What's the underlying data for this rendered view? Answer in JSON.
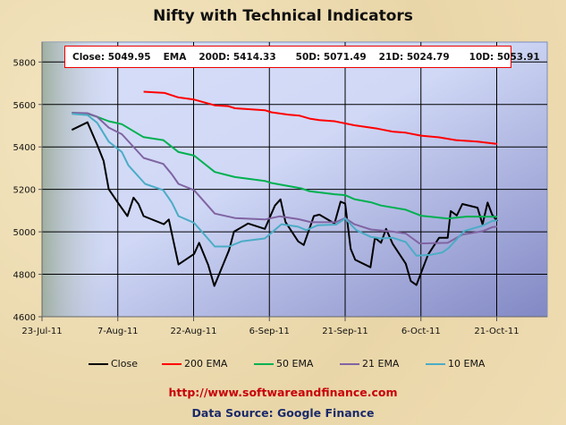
{
  "chart_data": {
    "type": "line",
    "title": "Nifty with Technical Indicators",
    "x_unit": "days since 23-Jul-11",
    "xlim": [
      0,
      100
    ],
    "ylim": [
      4600,
      5894
    ],
    "x_ticks": [
      {
        "day": 0,
        "label": "23-Jul-11"
      },
      {
        "day": 15,
        "label": "7-Aug-11"
      },
      {
        "day": 30,
        "label": "22-Aug-11"
      },
      {
        "day": 45,
        "label": "6-Sep-11"
      },
      {
        "day": 60,
        "label": "21-Sep-11"
      },
      {
        "day": 75,
        "label": "6-Oct-11"
      },
      {
        "day": 90,
        "label": "21-Oct-11"
      }
    ],
    "y_ticks": [
      4600,
      4800,
      5000,
      5200,
      5400,
      5600,
      5800
    ],
    "grid": true,
    "legend_position": "bottom",
    "info_box": {
      "close": "Close: 5049.95",
      "ema": "EMA",
      "d200": "200D: 5414.33",
      "d50": "50D: 5071.49",
      "d21": "21D: 5024.79",
      "d10": "10D: 5053.91"
    },
    "series": [
      {
        "name": "Close",
        "color": "#000000",
        "points": [
          [
            5.9,
            5480
          ],
          [
            9,
            5516
          ],
          [
            10.9,
            5411
          ],
          [
            12.2,
            5334
          ],
          [
            13.2,
            5201
          ],
          [
            15,
            5138
          ],
          [
            16.9,
            5074
          ],
          [
            18.1,
            5161
          ],
          [
            19.1,
            5131
          ],
          [
            20.1,
            5074
          ],
          [
            24.1,
            5036
          ],
          [
            25.1,
            5058
          ],
          [
            27,
            4846
          ],
          [
            30.1,
            4896
          ],
          [
            31.1,
            4948
          ],
          [
            32.9,
            4843
          ],
          [
            34.1,
            4745
          ],
          [
            37,
            4913
          ],
          [
            38,
            5001
          ],
          [
            40.8,
            5039
          ],
          [
            44.1,
            5014
          ],
          [
            46.1,
            5124
          ],
          [
            47.2,
            5153
          ],
          [
            48.2,
            5046
          ],
          [
            50.7,
            4955
          ],
          [
            51.8,
            4938
          ],
          [
            53.8,
            5074
          ],
          [
            54.9,
            5081
          ],
          [
            57.9,
            5039
          ],
          [
            59.1,
            5142
          ],
          [
            60,
            5133
          ],
          [
            61.1,
            4920
          ],
          [
            62,
            4868
          ],
          [
            65,
            4833
          ],
          [
            65.9,
            4972
          ],
          [
            67.1,
            4948
          ],
          [
            68.1,
            5014
          ],
          [
            69.4,
            4944
          ],
          [
            72,
            4850
          ],
          [
            73,
            4768
          ],
          [
            74.1,
            4749
          ],
          [
            76.4,
            4892
          ],
          [
            78.6,
            4972
          ],
          [
            80.3,
            4972
          ],
          [
            80.9,
            5098
          ],
          [
            82.1,
            5077
          ],
          [
            83.2,
            5131
          ],
          [
            86.2,
            5114
          ],
          [
            87.2,
            5035
          ],
          [
            88.2,
            5138
          ],
          [
            89.1,
            5081
          ],
          [
            90.1,
            5050
          ]
        ]
      },
      {
        "name": "200 EMA",
        "color": "#ff0000",
        "points": [
          [
            20.1,
            5660
          ],
          [
            24.3,
            5654
          ],
          [
            27,
            5633
          ],
          [
            30.1,
            5623
          ],
          [
            34.2,
            5596
          ],
          [
            36.8,
            5592
          ],
          [
            38.2,
            5582
          ],
          [
            44.1,
            5573
          ],
          [
            45.4,
            5563
          ],
          [
            48.7,
            5552
          ],
          [
            51,
            5547
          ],
          [
            53,
            5533
          ],
          [
            54.9,
            5526
          ],
          [
            57.9,
            5521
          ],
          [
            61.8,
            5502
          ],
          [
            66.4,
            5486
          ],
          [
            69.4,
            5472
          ],
          [
            72,
            5467
          ],
          [
            75,
            5453
          ],
          [
            78.6,
            5445
          ],
          [
            81.9,
            5432
          ],
          [
            86.2,
            5425
          ],
          [
            90.1,
            5414
          ]
        ]
      },
      {
        "name": "50 EMA",
        "color": "#00b050",
        "points": [
          [
            5.9,
            5561
          ],
          [
            9,
            5556
          ],
          [
            10.9,
            5542
          ],
          [
            13.2,
            5521
          ],
          [
            15.8,
            5507
          ],
          [
            20.1,
            5446
          ],
          [
            24,
            5432
          ],
          [
            27,
            5376
          ],
          [
            30.1,
            5359
          ],
          [
            34.2,
            5282
          ],
          [
            38.2,
            5258
          ],
          [
            44.1,
            5240
          ],
          [
            45.4,
            5230
          ],
          [
            51.3,
            5205
          ],
          [
            53,
            5191
          ],
          [
            57.9,
            5177
          ],
          [
            60,
            5173
          ],
          [
            61.8,
            5154
          ],
          [
            65.1,
            5139
          ],
          [
            67.1,
            5124
          ],
          [
            72,
            5104
          ],
          [
            75,
            5076
          ],
          [
            80.3,
            5063
          ],
          [
            84.2,
            5072
          ],
          [
            90.1,
            5071
          ]
        ]
      },
      {
        "name": "21 EMA",
        "color": "#8064a2",
        "points": [
          [
            5.9,
            5561
          ],
          [
            9,
            5559
          ],
          [
            10.9,
            5542
          ],
          [
            13.2,
            5491
          ],
          [
            15.8,
            5460
          ],
          [
            20.1,
            5348
          ],
          [
            24,
            5320
          ],
          [
            25.7,
            5271
          ],
          [
            27,
            5226
          ],
          [
            30.1,
            5196
          ],
          [
            34.2,
            5086
          ],
          [
            38.2,
            5065
          ],
          [
            44.1,
            5058
          ],
          [
            47,
            5073
          ],
          [
            50.7,
            5060
          ],
          [
            53.3,
            5045
          ],
          [
            58.2,
            5046
          ],
          [
            60,
            5065
          ],
          [
            61.8,
            5036
          ],
          [
            65.1,
            5011
          ],
          [
            69.4,
            5001
          ],
          [
            72,
            4992
          ],
          [
            74.7,
            4945
          ],
          [
            80.3,
            4948
          ],
          [
            83.2,
            4987
          ],
          [
            87.2,
            5003
          ],
          [
            89.1,
            5022
          ],
          [
            90.1,
            5025
          ]
        ]
      },
      {
        "name": "10 EMA",
        "color": "#4bacc6",
        "points": [
          [
            5.9,
            5556
          ],
          [
            9,
            5550
          ],
          [
            10.9,
            5514
          ],
          [
            13.2,
            5425
          ],
          [
            15.8,
            5376
          ],
          [
            17.1,
            5313
          ],
          [
            20.4,
            5226
          ],
          [
            24,
            5196
          ],
          [
            25.7,
            5138
          ],
          [
            27,
            5074
          ],
          [
            30.1,
            5042
          ],
          [
            34.2,
            4931
          ],
          [
            37,
            4931
          ],
          [
            39.5,
            4955
          ],
          [
            44.1,
            4969
          ],
          [
            47.4,
            5036
          ],
          [
            50.7,
            5024
          ],
          [
            52.3,
            5008
          ],
          [
            54.6,
            5031
          ],
          [
            58.2,
            5034
          ],
          [
            60,
            5063
          ],
          [
            62.2,
            5008
          ],
          [
            65.1,
            4976
          ],
          [
            67.1,
            4969
          ],
          [
            69.4,
            4972
          ],
          [
            72,
            4952
          ],
          [
            74.1,
            4888
          ],
          [
            77,
            4892
          ],
          [
            79.3,
            4903
          ],
          [
            80.5,
            4924
          ],
          [
            83.6,
            5004
          ],
          [
            87.2,
            5029
          ],
          [
            89.1,
            5051
          ],
          [
            90.1,
            5054
          ]
        ]
      }
    ]
  },
  "footer": {
    "url": "http://www.softwareandfinance.com",
    "source": "Data Source: Google Finance"
  }
}
